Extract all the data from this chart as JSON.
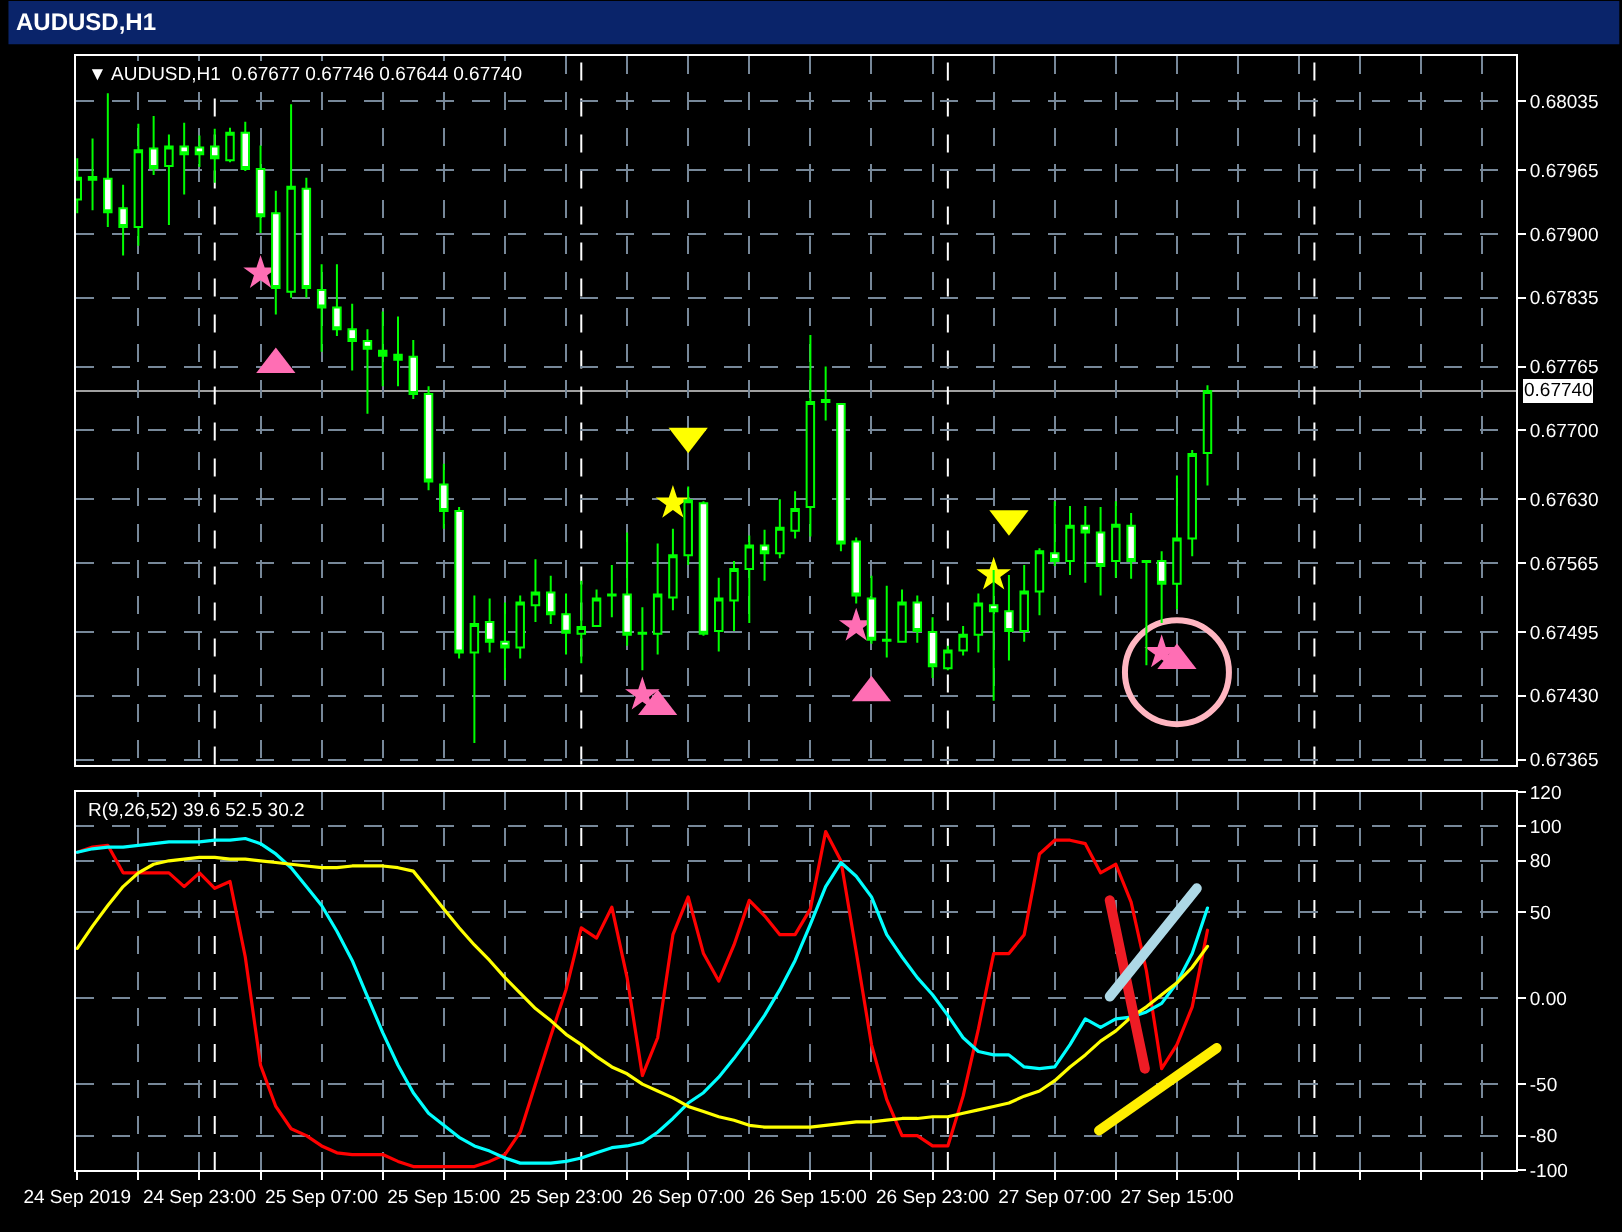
{
  "chart_data": [
    {
      "type": "candlestick",
      "title": "AUDUSD,H1",
      "subtitle": "▼ AUDUSD,H1  0.67677 0.67746 0.67644 0.67740",
      "x": [
        "2019-09-24T15:00",
        "2019-09-24T16:00",
        "2019-09-24T17:00",
        "2019-09-24T18:00",
        "2019-09-24T19:00",
        "2019-09-24T20:00",
        "2019-09-24T21:00",
        "2019-09-24T22:00",
        "2019-09-24T23:00",
        "2019-09-25T00:00",
        "2019-09-25T01:00",
        "2019-09-25T02:00",
        "2019-09-25T03:00",
        "2019-09-25T04:00",
        "2019-09-25T05:00",
        "2019-09-25T06:00",
        "2019-09-25T07:00",
        "2019-09-25T08:00",
        "2019-09-25T09:00",
        "2019-09-25T10:00",
        "2019-09-25T11:00",
        "2019-09-25T12:00",
        "2019-09-25T13:00",
        "2019-09-25T14:00",
        "2019-09-25T15:00",
        "2019-09-25T16:00",
        "2019-09-25T17:00",
        "2019-09-25T18:00",
        "2019-09-25T19:00",
        "2019-09-25T20:00",
        "2019-09-25T21:00",
        "2019-09-25T22:00",
        "2019-09-25T23:00",
        "2019-09-26T00:00",
        "2019-09-26T01:00",
        "2019-09-26T02:00",
        "2019-09-26T03:00",
        "2019-09-26T04:00",
        "2019-09-26T05:00",
        "2019-09-26T06:00",
        "2019-09-26T07:00",
        "2019-09-26T08:00",
        "2019-09-26T09:00",
        "2019-09-26T10:00",
        "2019-09-26T11:00",
        "2019-09-26T12:00",
        "2019-09-26T13:00",
        "2019-09-26T14:00",
        "2019-09-26T15:00",
        "2019-09-26T16:00",
        "2019-09-26T17:00",
        "2019-09-26T18:00",
        "2019-09-26T19:00",
        "2019-09-26T20:00",
        "2019-09-26T21:00",
        "2019-09-26T22:00",
        "2019-09-26T23:00",
        "2019-09-27T00:00",
        "2019-09-27T01:00",
        "2019-09-27T02:00",
        "2019-09-27T03:00",
        "2019-09-27T04:00",
        "2019-09-27T05:00",
        "2019-09-27T06:00",
        "2019-09-27T07:00",
        "2019-09-27T08:00",
        "2019-09-27T09:00",
        "2019-09-27T10:00",
        "2019-09-27T11:00",
        "2019-09-27T12:00",
        "2019-09-27T13:00",
        "2019-09-27T14:00",
        "2019-09-27T15:00",
        "2019-09-27T16:00",
        "2019-09-27T17:00"
      ],
      "ohlc": [
        [
          0.67935,
          0.67977,
          0.67921,
          0.67957
        ],
        [
          0.67955,
          0.67997,
          0.67924,
          0.67958
        ],
        [
          0.67956,
          0.68043,
          0.67907,
          0.67922
        ],
        [
          0.67926,
          0.6795,
          0.67878,
          0.67907
        ],
        [
          0.67907,
          0.68012,
          0.67888,
          0.67985
        ],
        [
          0.67987,
          0.6802,
          0.6796,
          0.67967
        ],
        [
          0.67969,
          0.68001,
          0.67909,
          0.67989
        ],
        [
          0.67989,
          0.68013,
          0.6794,
          0.67981
        ],
        [
          0.67988,
          0.68,
          0.67968,
          0.67981
        ],
        [
          0.67989,
          0.68007,
          0.67952,
          0.67977
        ],
        [
          0.67975,
          0.68008,
          0.67973,
          0.68003
        ],
        [
          0.68003,
          0.68014,
          0.67964,
          0.67966
        ],
        [
          0.67966,
          0.6799,
          0.67901,
          0.67918
        ],
        [
          0.67921,
          0.67944,
          0.67818,
          0.67845
        ],
        [
          0.67841,
          0.68032,
          0.67835,
          0.67948
        ],
        [
          0.67946,
          0.67957,
          0.67835,
          0.67845
        ],
        [
          0.67843,
          0.67869,
          0.6778,
          0.67825
        ],
        [
          0.67825,
          0.67869,
          0.67796,
          0.67803
        ],
        [
          0.67803,
          0.67829,
          0.67761,
          0.67791
        ],
        [
          0.67791,
          0.67803,
          0.67717,
          0.67783
        ],
        [
          0.67781,
          0.67821,
          0.67745,
          0.67776
        ],
        [
          0.67777,
          0.67816,
          0.67745,
          0.67772
        ],
        [
          0.67775,
          0.67792,
          0.67732,
          0.67737
        ],
        [
          0.67737,
          0.67745,
          0.67639,
          0.67648
        ],
        [
          0.67645,
          0.67666,
          0.676,
          0.67618
        ],
        [
          0.67618,
          0.67622,
          0.67468,
          0.67474
        ],
        [
          0.67474,
          0.67532,
          0.67382,
          0.67503
        ],
        [
          0.67505,
          0.67529,
          0.67474,
          0.67485
        ],
        [
          0.67485,
          0.67525,
          0.67446,
          0.67479
        ],
        [
          0.67479,
          0.67532,
          0.67468,
          0.67525
        ],
        [
          0.67522,
          0.67569,
          0.67505,
          0.67535
        ],
        [
          0.67535,
          0.67552,
          0.67503,
          0.67513
        ],
        [
          0.67513,
          0.67534,
          0.67472,
          0.67494
        ],
        [
          0.67493,
          0.67547,
          0.67463,
          0.675
        ],
        [
          0.67501,
          0.67538,
          0.67501,
          0.67529
        ],
        [
          0.67532,
          0.67563,
          0.6751,
          0.67533
        ],
        [
          0.67533,
          0.67596,
          0.67481,
          0.67492
        ],
        [
          0.67493,
          0.6752,
          0.67456,
          0.67494
        ],
        [
          0.67493,
          0.67585,
          0.67472,
          0.67533
        ],
        [
          0.6753,
          0.676,
          0.67517,
          0.67573
        ],
        [
          0.67573,
          0.67643,
          0.67563,
          0.67629
        ],
        [
          0.67626,
          0.67628,
          0.67491,
          0.67493
        ],
        [
          0.67496,
          0.6755,
          0.67475,
          0.67529
        ],
        [
          0.67527,
          0.67567,
          0.67496,
          0.67559
        ],
        [
          0.67559,
          0.67593,
          0.67504,
          0.67583
        ],
        [
          0.67583,
          0.67599,
          0.67547,
          0.67575
        ],
        [
          0.67575,
          0.6763,
          0.6757,
          0.67601
        ],
        [
          0.67598,
          0.67638,
          0.6759,
          0.6762
        ],
        [
          0.67622,
          0.67797,
          0.67592,
          0.67729
        ],
        [
          0.67731,
          0.67765,
          0.6771,
          0.67729
        ],
        [
          0.67727,
          0.67727,
          0.67577,
          0.67585
        ],
        [
          0.67587,
          0.67591,
          0.67524,
          0.67532
        ],
        [
          0.67529,
          0.67552,
          0.67483,
          0.67487
        ],
        [
          0.67487,
          0.67542,
          0.67469,
          0.67486
        ],
        [
          0.67485,
          0.67538,
          0.67485,
          0.67525
        ],
        [
          0.67525,
          0.67532,
          0.67484,
          0.67496
        ],
        [
          0.67495,
          0.6751,
          0.67448,
          0.6746
        ],
        [
          0.67458,
          0.67481,
          0.67456,
          0.67476
        ],
        [
          0.67476,
          0.67501,
          0.67471,
          0.67492
        ],
        [
          0.67492,
          0.67534,
          0.67474,
          0.67524
        ],
        [
          0.67522,
          0.67558,
          0.67425,
          0.67516
        ],
        [
          0.67516,
          0.67553,
          0.67466,
          0.67496
        ],
        [
          0.67496,
          0.67563,
          0.67485,
          0.67536
        ],
        [
          0.67536,
          0.6758,
          0.67512,
          0.67577
        ],
        [
          0.67575,
          0.67628,
          0.67562,
          0.67567
        ],
        [
          0.67567,
          0.67623,
          0.67553,
          0.67603
        ],
        [
          0.67603,
          0.67623,
          0.67545,
          0.67596
        ],
        [
          0.67596,
          0.67622,
          0.67532,
          0.67562
        ],
        [
          0.67567,
          0.67628,
          0.6755,
          0.67604
        ],
        [
          0.67603,
          0.67616,
          0.67549,
          0.67567
        ],
        [
          0.67567,
          0.67567,
          0.67461,
          0.67566
        ],
        [
          0.67567,
          0.67577,
          0.67504,
          0.67544
        ],
        [
          0.67544,
          0.67654,
          0.67518,
          0.6759
        ],
        [
          0.6759,
          0.6768,
          0.67572,
          0.67676
        ],
        [
          0.67677,
          0.67746,
          0.67644,
          0.6774
        ]
      ],
      "color": "#00ff00",
      "colors": [
        "#000000",
        "#00ff00",
        "#ffffff",
        "#ffffff",
        "#000000",
        "#ffffff",
        "#000000",
        "#ffffff",
        "#ffffff",
        "#ffffff",
        "#000000",
        "#ffffff",
        "#ffffff",
        "#ffffff",
        "#000000",
        "#ffffff",
        "#ffffff",
        "#ffffff",
        "#ffffff",
        "#ffffff",
        "#00ff00",
        "#00ff00",
        "#ffffff",
        "#ffffff",
        "#ffffff",
        "#ffffff",
        "#000000",
        "#ffffff",
        "#ffffff",
        "#000000",
        "#000000",
        "#ffffff",
        "#ffffff",
        "#000000",
        "#000000",
        "#00ff00",
        "#ffffff",
        "#00ff00",
        "#000000",
        "#000000",
        "#000000",
        "#ffffff",
        "#000000",
        "#000000",
        "#000000",
        "#ffffff",
        "#000000",
        "#000000",
        "#000000",
        "#00ff00",
        "#ffffff",
        "#ffffff",
        "#ffffff",
        "#00ff00",
        "#000000",
        "#ffffff",
        "#ffffff",
        "#000000",
        "#000000",
        "#000000",
        "#ffffff",
        "#ffffff",
        "#000000",
        "#000000",
        "#ffffff",
        "#000000",
        "#ffffff",
        "#ffffff",
        "#000000",
        "#ffffff",
        "#00ff00",
        "#ffffff",
        "#000000",
        "#000000",
        "#000000"
      ],
      "series": [
        {
          "type": "scatter",
          "marker": "star",
          "color": "#ff6eb4",
          "x": [
            "2019-09-25T03:00",
            "2019-09-26T04:00",
            "2019-09-26T18:00",
            "2019-09-27T14:00"
          ],
          "values": [
            0.6786,
            0.67431,
            0.67501,
            0.67474
          ]
        },
        {
          "type": "scatter",
          "marker": "triangle-up",
          "color": "#ff6eb4",
          "x": [
            "2019-09-25T04:00",
            "2019-09-26T05:00",
            "2019-09-26T19:00",
            "2019-09-27T15:00"
          ],
          "values": [
            0.67767,
            0.67419,
            0.67433,
            0.67466
          ]
        },
        {
          "type": "scatter",
          "marker": "triangle-down",
          "color": "#ffff00",
          "x": [
            "2019-09-26T07:00",
            "2019-09-27T04:00"
          ],
          "values": [
            0.67694,
            0.6761
          ]
        },
        {
          "type": "scatter",
          "marker": "star",
          "color": "#ffff00",
          "x": [
            "2019-09-26T06:00",
            "2019-09-27T03:00"
          ],
          "values": [
            0.67626,
            0.67553
          ]
        },
        {
          "type": "scatter",
          "marker": "circle",
          "color": "#ffb6c1",
          "x": [
            "2019-09-27T15:00"
          ],
          "values": [
            0.67454
          ]
        }
      ],
      "xlim": [
        "2019-09-24T14:55",
        "2019-09-28T13:12"
      ],
      "xticks": [
        {
          "value": "2019-09-24T15:00",
          "label": null
        },
        {
          "value": "2019-09-24T19:00",
          "label": null
        },
        {
          "value": "2019-09-24T23:00",
          "label": null
        },
        {
          "value": "2019-09-25T03:00",
          "label": null
        },
        {
          "value": "2019-09-25T07:00",
          "label": null
        },
        {
          "value": "2019-09-25T11:00",
          "label": null
        },
        {
          "value": "2019-09-25T15:00",
          "label": null
        },
        {
          "value": "2019-09-25T19:00",
          "label": null
        },
        {
          "value": "2019-09-25T23:00",
          "label": null
        },
        {
          "value": "2019-09-26T03:00",
          "label": null
        },
        {
          "value": "2019-09-26T07:00",
          "label": null
        },
        {
          "value": "2019-09-26T11:00",
          "label": null
        },
        {
          "value": "2019-09-26T15:00",
          "label": null
        },
        {
          "value": "2019-09-26T19:00",
          "label": null
        },
        {
          "value": "2019-09-26T23:00",
          "label": null
        },
        {
          "value": "2019-09-27T03:00",
          "label": null
        },
        {
          "value": "2019-09-27T07:00",
          "label": null
        },
        {
          "value": "2019-09-27T11:00",
          "label": null
        },
        {
          "value": "2019-09-27T15:00",
          "label": null
        },
        {
          "value": "2019-09-27T19:00",
          "label": null
        },
        {
          "value": "2019-09-27T23:00",
          "label": null
        },
        {
          "value": "2019-09-28T03:00",
          "label": null
        },
        {
          "value": "2019-09-28T07:00",
          "label": null
        },
        {
          "value": "2019-09-28T11:00",
          "label": null
        }
      ],
      "ylim": [
        0.6736,
        0.68081
      ],
      "yticks": [
        0.68035,
        0.67965,
        {
          "value": 0.679,
          "label": "0.67900"
        },
        0.67835,
        0.67765,
        {
          "value": 0.677,
          "label": "0.67700"
        },
        {
          "value": 0.6763,
          "label": "0.67630"
        },
        0.67565,
        0.67495,
        {
          "value": 0.6743,
          "label": "0.67430"
        },
        0.67365
      ],
      "grid": true,
      "tick_labels": "y",
      "ref_lines": [
        {
          "axis": "y",
          "value": 0.6774,
          "label": "0.67740",
          "color": "#a0a0a0"
        },
        {
          "axis": "x",
          "value": "2019-09-25T00:00",
          "color": "#ffffff",
          "line_style": "dashed"
        },
        {
          "axis": "x",
          "value": "2019-09-26T00:00",
          "color": "#ffffff",
          "line_style": "dashed"
        },
        {
          "axis": "x",
          "value": "2019-09-27T00:00",
          "color": "#ffffff",
          "line_style": "dashed"
        },
        {
          "axis": "x",
          "value": "2019-09-28T00:00",
          "color": "#ffffff",
          "line_style": "dashed"
        }
      ]
    },
    {
      "type": "line",
      "title": "R(9,26,52) 39.6 52.5 30.2",
      "x": [
        "2019-09-24T15:00",
        "2019-09-24T16:00",
        "2019-09-24T17:00",
        "2019-09-24T18:00",
        "2019-09-24T19:00",
        "2019-09-24T20:00",
        "2019-09-24T21:00",
        "2019-09-24T22:00",
        "2019-09-24T23:00",
        "2019-09-25T00:00",
        "2019-09-25T01:00",
        "2019-09-25T02:00",
        "2019-09-25T03:00",
        "2019-09-25T04:00",
        "2019-09-25T05:00",
        "2019-09-25T06:00",
        "2019-09-25T07:00",
        "2019-09-25T08:00",
        "2019-09-25T09:00",
        "2019-09-25T10:00",
        "2019-09-25T11:00",
        "2019-09-25T12:00",
        "2019-09-25T13:00",
        "2019-09-25T14:00",
        "2019-09-25T15:00",
        "2019-09-25T16:00",
        "2019-09-25T17:00",
        "2019-09-25T18:00",
        "2019-09-25T19:00",
        "2019-09-25T20:00",
        "2019-09-25T21:00",
        "2019-09-25T22:00",
        "2019-09-25T23:00",
        "2019-09-26T00:00",
        "2019-09-26T01:00",
        "2019-09-26T02:00",
        "2019-09-26T03:00",
        "2019-09-26T04:00",
        "2019-09-26T05:00",
        "2019-09-26T06:00",
        "2019-09-26T07:00",
        "2019-09-26T08:00",
        "2019-09-26T09:00",
        "2019-09-26T10:00",
        "2019-09-26T11:00",
        "2019-09-26T12:00",
        "2019-09-26T13:00",
        "2019-09-26T14:00",
        "2019-09-26T15:00",
        "2019-09-26T16:00",
        "2019-09-26T17:00",
        "2019-09-26T18:00",
        "2019-09-26T19:00",
        "2019-09-26T20:00",
        "2019-09-26T21:00",
        "2019-09-26T22:00",
        "2019-09-26T23:00",
        "2019-09-27T00:00",
        "2019-09-27T01:00",
        "2019-09-27T02:00",
        "2019-09-27T03:00",
        "2019-09-27T04:00",
        "2019-09-27T05:00",
        "2019-09-27T06:00",
        "2019-09-27T07:00",
        "2019-09-27T08:00",
        "2019-09-27T09:00",
        "2019-09-27T10:00",
        "2019-09-27T11:00",
        "2019-09-27T12:00",
        "2019-09-27T13:00",
        "2019-09-27T14:00",
        "2019-09-27T15:00",
        "2019-09-27T16:00",
        "2019-09-27T17:00"
      ],
      "series": [
        {
          "color": "#ff0000",
          "values": [
            85,
            88,
            89,
            73,
            73,
            73,
            73,
            65,
            73,
            64,
            68,
            24,
            -39,
            -63,
            -76,
            -80,
            -86,
            -90,
            -91,
            -91,
            -91,
            -95,
            -98,
            -98,
            -98,
            -98,
            -98,
            -95,
            -91,
            -78,
            -50,
            -22,
            5,
            41,
            35,
            53,
            12,
            -45,
            -23,
            37,
            59,
            26,
            10,
            31,
            57,
            48,
            37,
            37,
            52,
            97,
            80,
            27,
            -27,
            -59,
            -80,
            -80,
            -86,
            -86,
            -57,
            -18,
            26,
            26,
            37,
            84,
            92,
            92,
            90,
            73,
            78,
            56,
            16,
            -41,
            -27,
            -5,
            39.6
          ]
        },
        {
          "color": "#00ffff",
          "values": [
            85,
            87,
            88,
            88,
            89,
            90,
            91,
            91,
            91,
            92,
            92,
            93,
            90,
            84,
            76,
            65,
            54,
            39,
            22,
            1,
            -20,
            -39,
            -55,
            -67,
            -74,
            -81,
            -86,
            -89,
            -93,
            -96,
            -96,
            -96,
            -95,
            -93,
            -90,
            -87,
            -86,
            -84,
            -78,
            -70,
            -61,
            -55,
            -46,
            -35,
            -23,
            -10,
            5,
            22,
            43,
            65,
            79,
            71,
            59,
            37,
            24,
            12,
            2,
            -10,
            -23,
            -31,
            -33,
            -33,
            -40,
            -41,
            -40,
            -27,
            -12,
            -17,
            -12,
            -11,
            -8,
            -3,
            9,
            26,
            52.5
          ]
        },
        {
          "color": "#ffff00",
          "values": [
            29,
            42,
            54,
            65,
            73,
            78,
            80,
            81,
            82,
            82,
            81,
            81,
            80,
            79,
            78,
            77,
            76,
            76,
            77,
            77,
            77,
            76,
            74,
            63,
            52,
            41,
            31,
            22,
            12,
            3,
            -6,
            -13,
            -21,
            -27,
            -34,
            -40,
            -44,
            -50,
            -54,
            -58,
            -63,
            -66,
            -69,
            -71,
            -74,
            -75,
            -75,
            -75,
            -75,
            -74,
            -73,
            -72,
            -72,
            -71,
            -70,
            -70,
            -69,
            -69,
            -67,
            -65,
            -63,
            -61,
            -57,
            -54,
            -48,
            -40,
            -33,
            -25,
            -19,
            -11,
            -5,
            2,
            9,
            18,
            30.2
          ]
        },
        {
          "color": "#ee1c25",
          "x": [
            "2019-09-27T10:36",
            "2019-09-27T12:54"
          ],
          "values": [
            57,
            -41
          ]
        },
        {
          "color": "#add8e6",
          "x": [
            "2019-09-27T10:36",
            "2019-09-27T16:18"
          ],
          "values": [
            1,
            64
          ]
        },
        {
          "color": "#ffee00",
          "x": [
            "2019-09-27T09:54",
            "2019-09-27T17:36"
          ],
          "values": [
            -77,
            -29
          ]
        }
      ],
      "xlim": [
        "2019-09-24T14:55",
        "2019-09-28T13:12"
      ],
      "xticks": [
        {
          "value": "2019-09-24T15:00",
          "label": "24 Sep 2019"
        },
        {
          "value": "2019-09-24T19:00",
          "label": null
        },
        {
          "value": "2019-09-24T23:00",
          "label": "24 Sep 23:00"
        },
        {
          "value": "2019-09-25T03:00",
          "label": null
        },
        {
          "value": "2019-09-25T07:00",
          "label": "25 Sep 07:00"
        },
        {
          "value": "2019-09-25T11:00",
          "label": null
        },
        {
          "value": "2019-09-25T15:00",
          "label": "25 Sep 15:00"
        },
        {
          "value": "2019-09-25T19:00",
          "label": null
        },
        {
          "value": "2019-09-25T23:00",
          "label": "25 Sep 23:00"
        },
        {
          "value": "2019-09-26T03:00",
          "label": null
        },
        {
          "value": "2019-09-26T07:00",
          "label": "26 Sep 07:00"
        },
        {
          "value": "2019-09-26T11:00",
          "label": null
        },
        {
          "value": "2019-09-26T15:00",
          "label": "26 Sep 15:00"
        },
        {
          "value": "2019-09-26T19:00",
          "label": null
        },
        {
          "value": "2019-09-26T23:00",
          "label": "26 Sep 23:00"
        },
        {
          "value": "2019-09-27T03:00",
          "label": null
        },
        {
          "value": "2019-09-27T07:00",
          "label": "27 Sep 07:00"
        },
        {
          "value": "2019-09-27T11:00",
          "label": null
        },
        {
          "value": "2019-09-27T15:00",
          "label": "27 Sep 15:00"
        },
        {
          "value": "2019-09-27T19:00",
          "label": null
        },
        {
          "value": "2019-09-27T23:00",
          "label": null
        },
        {
          "value": "2019-09-28T03:00",
          "label": null
        },
        {
          "value": "2019-09-28T07:00",
          "label": null
        },
        {
          "value": "2019-09-28T11:00",
          "label": null
        }
      ],
      "ylim": [
        -100,
        120
      ],
      "yticks": [
        120,
        100,
        80,
        50,
        {
          "value": 0,
          "label": "0.00"
        },
        -50,
        -80,
        -100
      ],
      "grid": true,
      "ref_lines": [
        {
          "axis": "x",
          "value": "2019-09-25T00:00",
          "color": "#ffffff",
          "line_style": "dashed"
        },
        {
          "axis": "x",
          "value": "2019-09-26T00:00",
          "color": "#ffffff",
          "line_style": "dashed"
        },
        {
          "axis": "x",
          "value": "2019-09-27T00:00",
          "color": "#ffffff",
          "line_style": "dashed"
        },
        {
          "axis": "x",
          "value": "2019-09-28T00:00",
          "color": "#ffffff",
          "line_style": "dashed"
        }
      ]
    }
  ]
}
